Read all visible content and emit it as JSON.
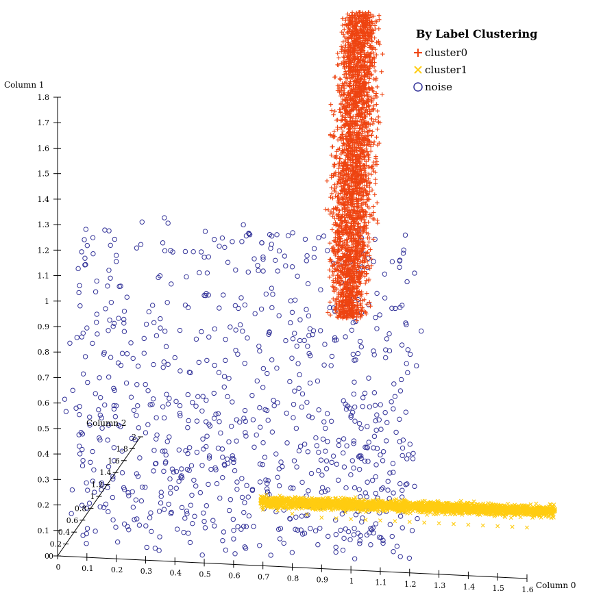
{
  "chart_data": {
    "type": "scatter",
    "title": "",
    "legend": {
      "title": "By Label Clustering",
      "placement": "top-right",
      "entries": [
        "cluster0",
        "cluster1",
        "noise"
      ]
    },
    "axes": {
      "x": {
        "label": "Column 0",
        "range": [
          0,
          1.6
        ],
        "ticks": [
          "0",
          "0.1",
          "0.2",
          "0.3",
          "0.4",
          "0.5",
          "0.6",
          "0.7",
          "0.8",
          "0.9",
          "1",
          "1.1",
          "1.2",
          "1.3",
          "1.4",
          "1.5",
          "1.6"
        ]
      },
      "y": {
        "label": "Column 1",
        "range": [
          0,
          1.8
        ],
        "ticks": [
          "0",
          "0.1",
          "0.2",
          "0.3",
          "0.4",
          "0.5",
          "0.6",
          "0.7",
          "0.8",
          "0.9",
          "1",
          "1.1",
          "1.2",
          "1.3",
          "1.4",
          "1.5",
          "1.6",
          "1.7",
          "1.8"
        ]
      },
      "z": {
        "label": "Column 2",
        "range": [
          0,
          2
        ],
        "ticks": [
          "0",
          "0.2",
          "0.4",
          "0.6",
          "0.8",
          "1",
          "1.2",
          "1.4",
          "1.6",
          "1.8",
          "2"
        ]
      }
    },
    "grid": false,
    "series": [
      {
        "name": "cluster0",
        "marker": "plus",
        "color": "#ee4411",
        "x": [
          1.02,
          1.01,
          1.0,
          1.04,
          0.99,
          1.03,
          1.02,
          1.0,
          1.05,
          0.98,
          1.01,
          1.03,
          1.0,
          1.02,
          0.99,
          1.04,
          1.01,
          1.02,
          1.0,
          1.03
        ],
        "y": [
          1.79,
          1.74,
          1.69,
          1.64,
          1.6,
          1.55,
          1.5,
          1.45,
          1.4,
          1.35,
          1.3,
          1.25,
          1.2,
          1.15,
          1.1,
          1.06,
          1.02,
          0.98,
          1.7,
          1.5
        ],
        "z": [
          1.0,
          1.0,
          1.0,
          1.0,
          1.0,
          1.0,
          1.0,
          1.0,
          1.0,
          1.0,
          1.0,
          1.0,
          1.0,
          1.0,
          1.0,
          1.0,
          1.0,
          1.0,
          1.0,
          1.0
        ]
      },
      {
        "name": "cluster1",
        "marker": "x",
        "color": "#ffcc11",
        "x": [
          0.7,
          0.75,
          0.8,
          0.85,
          0.9,
          0.95,
          1.0,
          1.05,
          1.1,
          1.15,
          1.2,
          1.25,
          1.3,
          1.35,
          1.4,
          1.45,
          1.5,
          1.55,
          1.6
        ],
        "y": [
          0.22,
          0.22,
          0.21,
          0.21,
          0.2,
          0.2,
          0.2,
          0.2,
          0.2,
          0.2,
          0.2,
          0.2,
          0.2,
          0.2,
          0.2,
          0.2,
          0.2,
          0.2,
          0.2
        ],
        "z": [
          1.0,
          1.0,
          1.0,
          1.0,
          1.0,
          1.0,
          1.0,
          1.0,
          1.0,
          1.0,
          1.0,
          1.0,
          1.0,
          1.0,
          1.0,
          1.0,
          1.0,
          1.0,
          1.0
        ]
      },
      {
        "name": "noise",
        "marker": "circle",
        "color": "#333399",
        "x": [
          0.1,
          0.25,
          0.4,
          0.55,
          0.7,
          0.85,
          1.0,
          0.15,
          0.3,
          0.45,
          0.6,
          0.75,
          0.9,
          1.05,
          0.2,
          0.35,
          0.5,
          0.65,
          0.8,
          0.95,
          0.12,
          0.28,
          0.44,
          0.6,
          0.76,
          0.92,
          1.08,
          0.18,
          0.5,
          0.82
        ],
        "y": [
          0.9,
          0.85,
          0.8,
          0.75,
          0.7,
          0.65,
          0.6,
          0.55,
          0.5,
          0.45,
          0.4,
          0.35,
          0.3,
          0.25,
          0.6,
          0.95,
          1.05,
          1.15,
          1.0,
          0.9,
          0.3,
          0.4,
          0.2,
          0.1,
          0.15,
          0.5,
          0.7,
          1.1,
          1.2,
          0.8
        ],
        "z": [
          1.0,
          1.0,
          1.0,
          1.0,
          1.0,
          1.0,
          1.0,
          1.0,
          1.0,
          1.0,
          1.0,
          1.0,
          1.0,
          1.0,
          1.0,
          1.0,
          1.0,
          1.0,
          1.0,
          1.0,
          1.0,
          1.0,
          1.0,
          1.0,
          1.0,
          1.0,
          1.0,
          1.0,
          1.0,
          1.0
        ]
      }
    ]
  }
}
